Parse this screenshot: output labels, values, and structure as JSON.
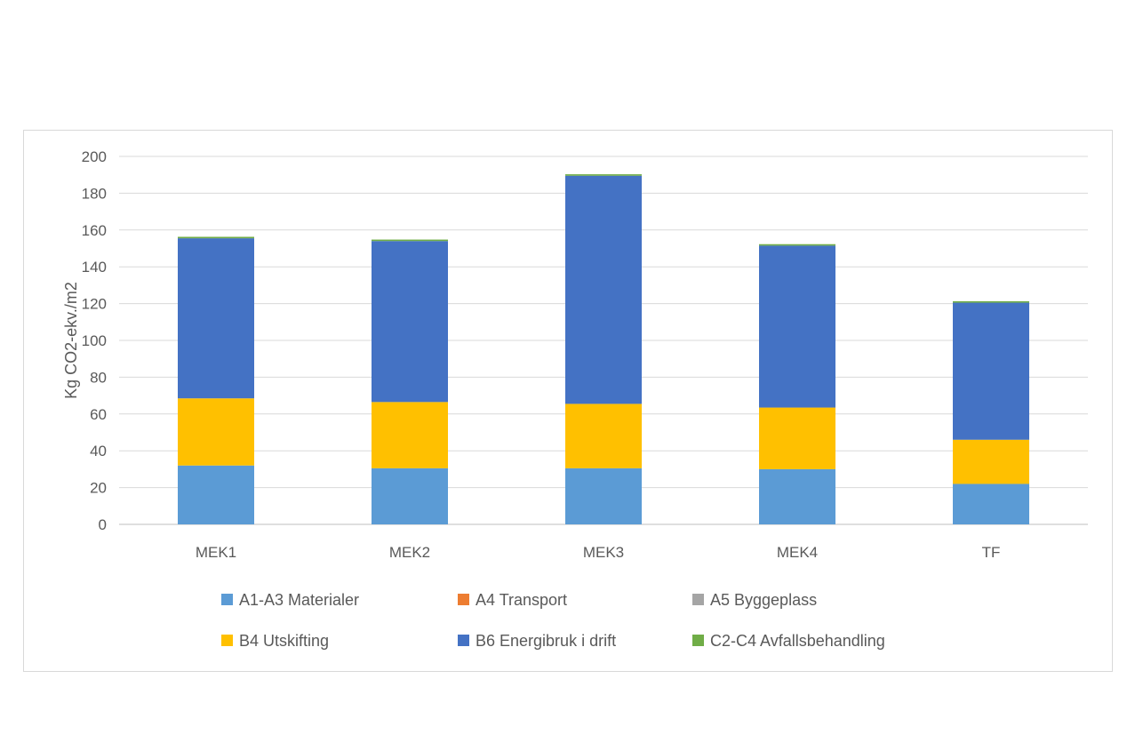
{
  "chart_data": {
    "type": "bar",
    "stacked": true,
    "title": "",
    "xlabel": "",
    "ylabel": "Kg CO2-ekv./m2",
    "ylim": [
      0,
      200
    ],
    "yticks": [
      0,
      20,
      40,
      60,
      80,
      100,
      120,
      140,
      160,
      180,
      200
    ],
    "grid": true,
    "legend_position": "bottom",
    "categories": [
      "MEK1",
      "MEK2",
      "MEK3",
      "MEK4",
      "TF"
    ],
    "series": [
      {
        "name": "A1-A3 Materialer",
        "color": "#5b9bd5",
        "values": [
          32,
          30.5,
          30.5,
          30,
          22
        ]
      },
      {
        "name": "A4 Transport",
        "color": "#ed7d31",
        "values": [
          0,
          0,
          0,
          0,
          0
        ]
      },
      {
        "name": "A5 Byggeplass",
        "color": "#a5a5a5",
        "values": [
          0,
          0,
          0,
          0,
          0
        ]
      },
      {
        "name": "B4 Utskifting",
        "color": "#ffc000",
        "values": [
          36.5,
          36,
          35,
          33.5,
          24
        ]
      },
      {
        "name": "B6 Energibruk i drift",
        "color": "#4472c4",
        "values": [
          87,
          87.5,
          124,
          88,
          74.5
        ]
      },
      {
        "name": "C2-C4 Avfallsbehandling",
        "color": "#70ad47",
        "values": [
          0.8,
          0.8,
          0.8,
          0.8,
          0.8
        ]
      }
    ]
  }
}
